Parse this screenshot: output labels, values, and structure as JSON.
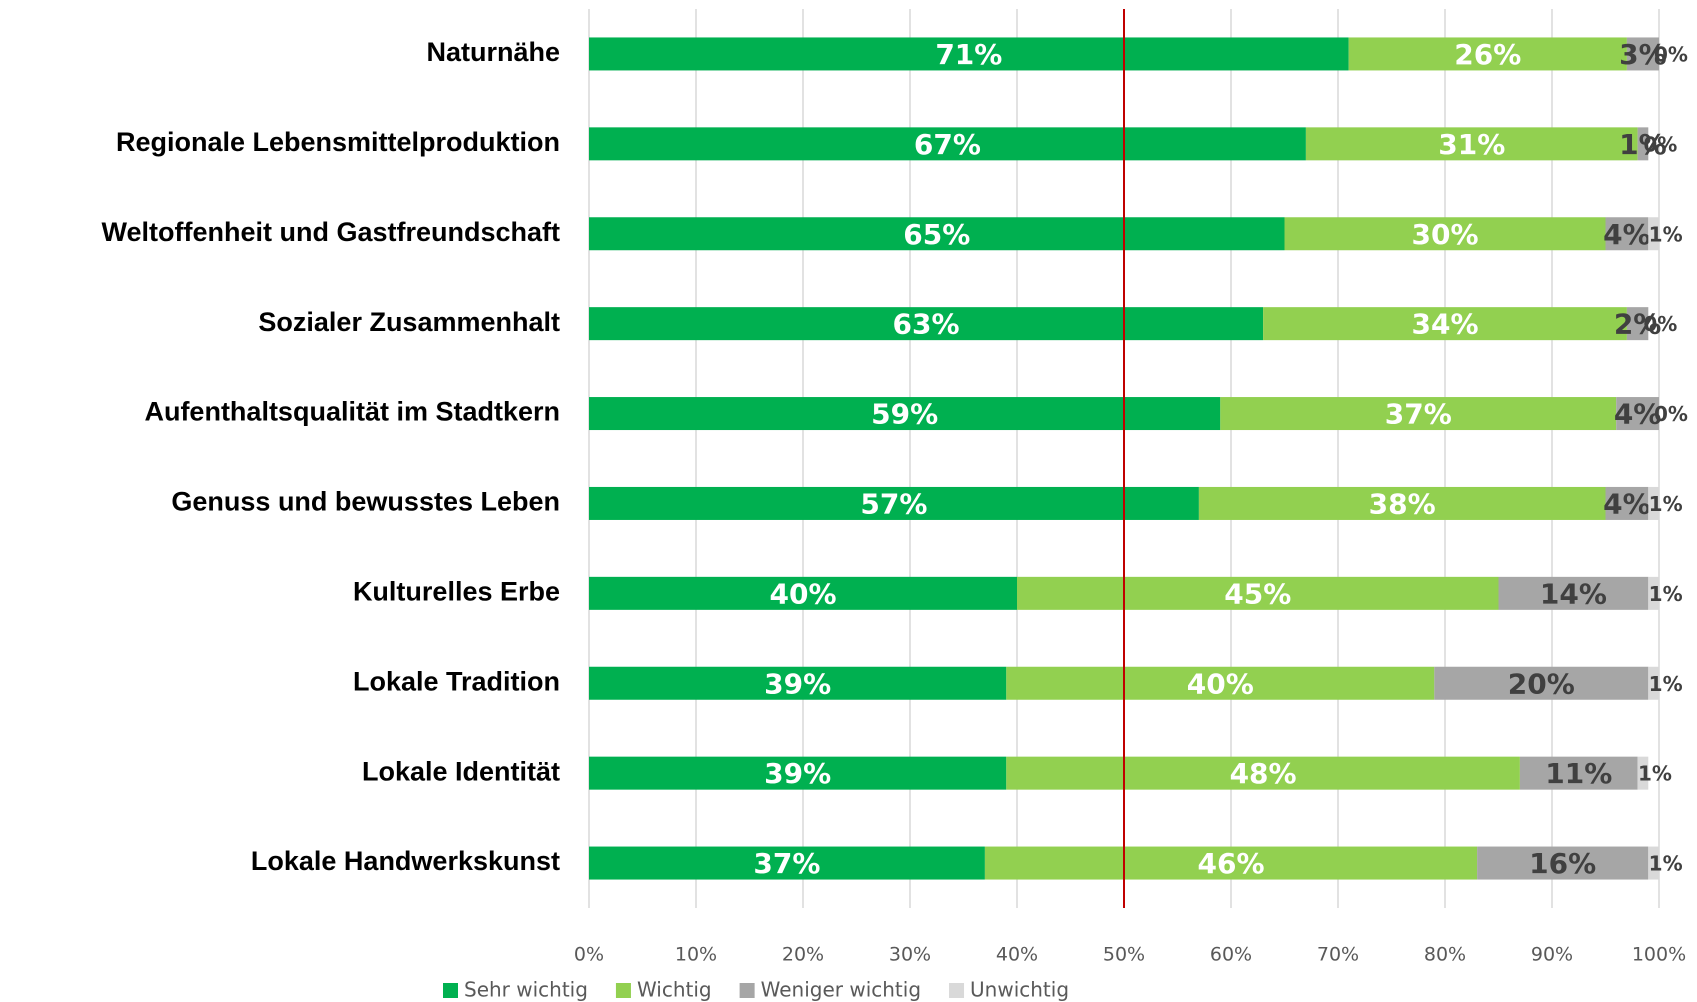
{
  "chart_data": {
    "type": "stacked_bar_horizontal",
    "categories": [
      "Naturnähe",
      "Regionale Lebensmittelproduktion",
      "Weltoffenheit und Gastfreundschaft",
      "Sozialer Zusammenhalt",
      "Aufenthaltsqualität im Stadtkern",
      "Genuss und bewusstes Leben",
      "Kulturelles Erbe",
      "Lokale Tradition",
      "Lokale Identität",
      "Lokale Handwerkskunst"
    ],
    "series": [
      {
        "name": "Sehr wichtig",
        "color": "#00b050",
        "label_color": "#ffffff",
        "values": [
          71,
          67,
          65,
          63,
          59,
          57,
          40,
          39,
          39,
          37
        ],
        "value_labels": [
          "71%",
          "67%",
          "65%",
          "63%",
          "59%",
          "57%",
          "40%",
          "39%",
          "39%",
          "37%"
        ]
      },
      {
        "name": "Wichtig",
        "color": "#92d050",
        "label_color": "#ffffff",
        "values": [
          26,
          31,
          30,
          34,
          37,
          38,
          45,
          40,
          48,
          46
        ],
        "value_labels": [
          "26%",
          "31%",
          "30%",
          "34%",
          "37%",
          "38%",
          "45%",
          "40%",
          "48%",
          "46%"
        ]
      },
      {
        "name": "Weniger wichtig",
        "color": "#a6a6a6",
        "label_color": "#404040",
        "values": [
          3,
          1,
          4,
          2,
          4,
          4,
          14,
          20,
          11,
          16
        ],
        "value_labels": [
          "3%",
          "1%",
          "4%",
          "2%",
          "4%",
          "4%",
          "14%",
          "20%",
          "11%",
          "16%"
        ]
      },
      {
        "name": "Unwichtig",
        "color": "#d9d9d9",
        "label_color": "#404040",
        "values": [
          0,
          0,
          1,
          0,
          0,
          1,
          1,
          1,
          1,
          1
        ],
        "value_labels": [
          "0%",
          "0%",
          "1%",
          "0%",
          "0%",
          "1%",
          "1%",
          "1%",
          "1%",
          "1%"
        ]
      }
    ],
    "xlim": [
      0,
      100
    ],
    "xticks": [
      {
        "value": 0,
        "label": "0%"
      },
      {
        "value": 10,
        "label": "10%"
      },
      {
        "value": 20,
        "label": "20%"
      },
      {
        "value": 30,
        "label": "30%"
      },
      {
        "value": 40,
        "label": "40%"
      },
      {
        "value": 50,
        "label": "50%"
      },
      {
        "value": 60,
        "label": "60%"
      },
      {
        "value": 70,
        "label": "70%"
      },
      {
        "value": 80,
        "label": "80%"
      },
      {
        "value": 90,
        "label": "90%"
      },
      {
        "value": 100,
        "label": "100%"
      }
    ],
    "reference_line": {
      "value": 50,
      "color": "#c00000"
    },
    "grid": true,
    "legend": "bottom"
  }
}
